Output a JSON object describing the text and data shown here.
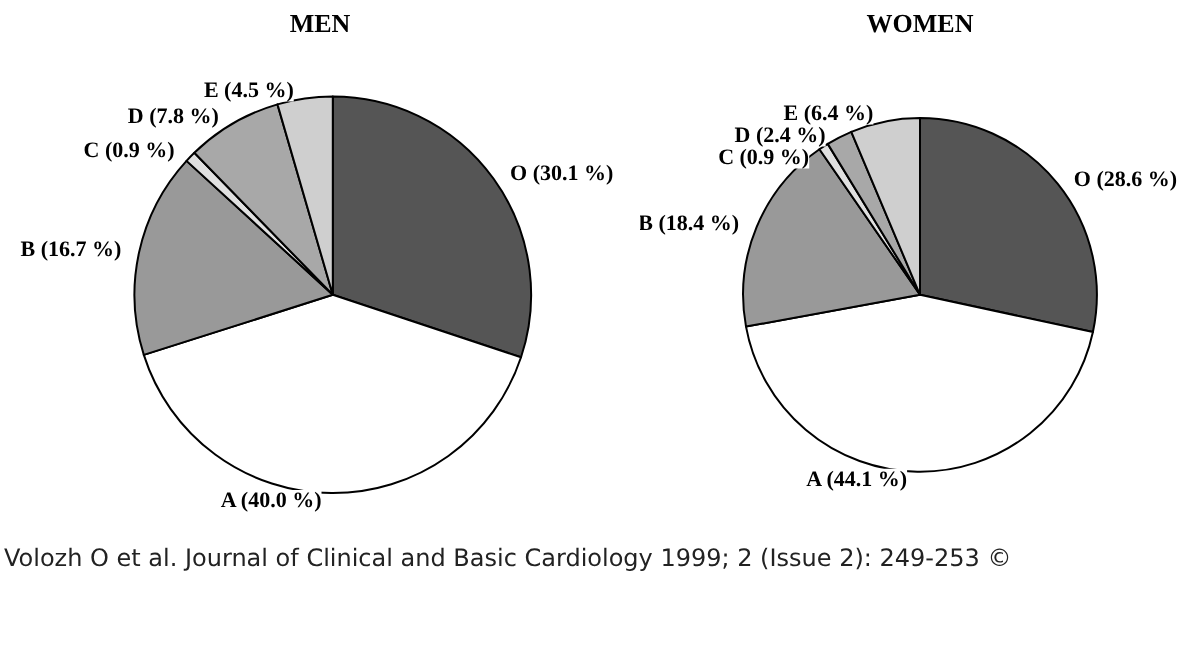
{
  "chart_data": [
    {
      "type": "pie",
      "title": "MEN",
      "categories": [
        "O",
        "A",
        "B",
        "C",
        "D",
        "E"
      ],
      "values": [
        30.1,
        40.0,
        16.7,
        0.9,
        7.8,
        4.5
      ],
      "colors": [
        "#555555",
        "#ffffff",
        "#999999",
        "#e0e0e0",
        "#a8a8a8",
        "#cfcfcf"
      ],
      "value_labels": [
        "(30.1 %)",
        "(40.0 %)",
        "(16.7 %)",
        "(0.9 %)",
        "(7.8 %)",
        "(4.5 %)"
      ],
      "annotations": [
        "Volozh O et al. Journal of Clinical and Basic Cardiology 1999; 2 (Issue 2): 249-253 ©"
      ]
    },
    {
      "type": "pie",
      "title": "WOMEN",
      "categories": [
        "O",
        "A",
        "B",
        "C",
        "D",
        "E"
      ],
      "values": [
        28.6,
        44.1,
        18.4,
        0.9,
        2.4,
        6.4
      ],
      "colors": [
        "#555555",
        "#ffffff",
        "#999999",
        "#e0e0e0",
        "#a8a8a8",
        "#cfcfcf"
      ],
      "value_labels": [
        "(28.6 %)",
        "(44.1 %)",
        "(18.4 %)",
        "(0.9 %)",
        "(2.4 %)",
        "(6.4 %)"
      ]
    }
  ]
}
